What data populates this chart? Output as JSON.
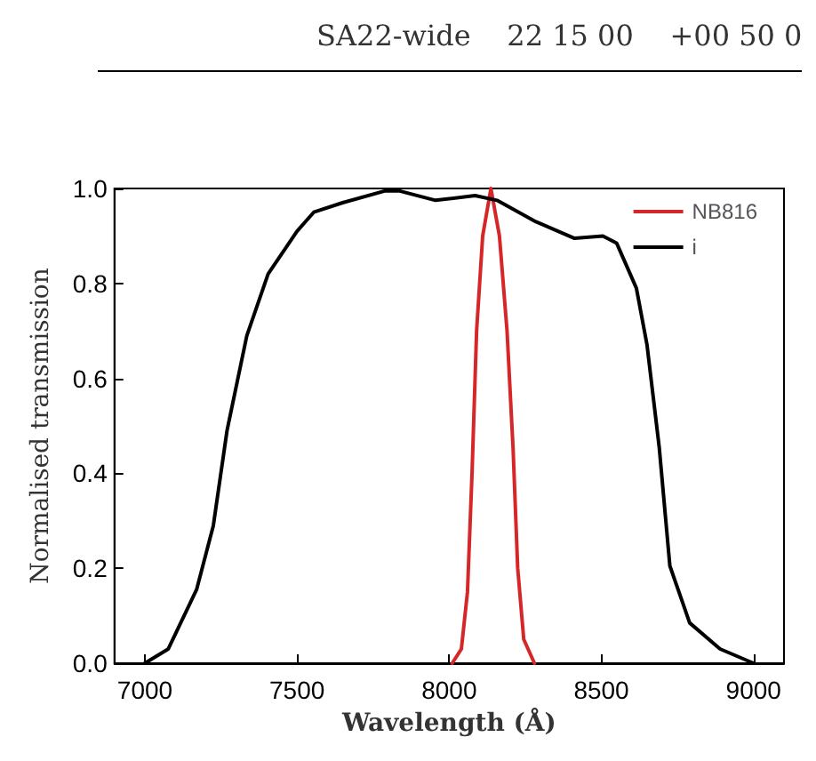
{
  "chart_data": {
    "type": "line",
    "xlabel": "Wavelength (Å)",
    "ylabel": "Normalised transmission",
    "annotations": [
      "SA22-wide    22 15 00    +00 50 0"
    ],
    "xlim": [
      6900,
      9100
    ],
    "xticks": [
      7000,
      7500,
      8000,
      8500,
      9000
    ],
    "ylim": [
      0,
      1.0
    ],
    "yticks": [
      {
        "value": 0,
        "label": "0.0"
      },
      {
        "value": 0.2,
        "label": "0.2"
      },
      {
        "value": 0.4,
        "label": "0.4"
      },
      {
        "value": 0.6,
        "label": "0.6"
      },
      {
        "value": 0.8,
        "label": "0.8"
      },
      {
        "value": 1.0,
        "label": "1.0"
      }
    ],
    "grid": false,
    "legend": "top right",
    "marker": "none",
    "line_style": "solid",
    "series": [
      {
        "name": "NB816",
        "color": "#d62728",
        "x": [
          8010,
          8040,
          8060,
          8075,
          8090,
          8110,
          8137,
          8165,
          8190,
          8210,
          8225,
          8245,
          8280
        ],
        "values": [
          0,
          0.03,
          0.15,
          0.4,
          0.7,
          0.9,
          1.0,
          0.9,
          0.7,
          0.45,
          0.2,
          0.05,
          0
        ]
      },
      {
        "name": "i",
        "color": "#000000",
        "x": [
          7000,
          7077,
          7170,
          7225,
          7270,
          7335,
          7405,
          7500,
          7555,
          7650,
          7790,
          7835,
          7955,
          8085,
          8157,
          8285,
          8412,
          8505,
          8550,
          8615,
          8650,
          8690,
          8725,
          8790,
          8890,
          9000
        ],
        "values": [
          0,
          0.03,
          0.155,
          0.29,
          0.49,
          0.69,
          0.82,
          0.91,
          0.95,
          0.97,
          0.995,
          0.995,
          0.975,
          0.985,
          0.975,
          0.93,
          0.895,
          0.9,
          0.885,
          0.79,
          0.67,
          0.455,
          0.205,
          0.085,
          0.03,
          0
        ]
      }
    ]
  }
}
